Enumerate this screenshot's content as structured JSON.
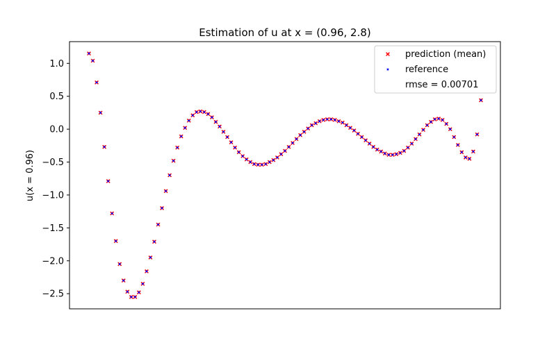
{
  "chart_data": {
    "type": "scatter",
    "title": "Estimation of u at x = (0.96, 2.8)",
    "xlabel": "",
    "ylabel": "u(x = 0.96)",
    "ylim": [
      -2.73,
      1.33
    ],
    "yticks": [
      1.0,
      0.5,
      0.0,
      -0.5,
      -1.0,
      -1.5,
      -2.0,
      -2.5
    ],
    "ytick_labels": [
      "1.0",
      "0.5",
      "0.0",
      "−0.5",
      "−1.0",
      "−1.5",
      "−2.0",
      "−2.5"
    ],
    "xticks_shown": false,
    "grid": false,
    "legend_position": "top-right",
    "colors": {
      "prediction": "#ff0000",
      "reference": "#0000ff"
    },
    "series": [
      {
        "name": "prediction (mean)",
        "marker": "x",
        "color": "#ff0000"
      },
      {
        "name": "reference",
        "marker": "star",
        "color": "#0000ff"
      }
    ],
    "annotation": "rmse = 0.00701",
    "y": [
      1.15,
      1.04,
      0.71,
      0.25,
      -0.27,
      -0.79,
      -1.28,
      -1.7,
      -2.05,
      -2.3,
      -2.47,
      -2.55,
      -2.55,
      -2.48,
      -2.35,
      -2.16,
      -1.95,
      -1.71,
      -1.45,
      -1.2,
      -0.94,
      -0.7,
      -0.48,
      -0.28,
      -0.11,
      0.02,
      0.13,
      0.21,
      0.26,
      0.27,
      0.26,
      0.23,
      0.18,
      0.11,
      0.04,
      -0.04,
      -0.12,
      -0.2,
      -0.28,
      -0.35,
      -0.41,
      -0.46,
      -0.5,
      -0.53,
      -0.54,
      -0.54,
      -0.53,
      -0.5,
      -0.47,
      -0.43,
      -0.38,
      -0.33,
      -0.27,
      -0.21,
      -0.15,
      -0.09,
      -0.04,
      0.01,
      0.06,
      0.09,
      0.12,
      0.14,
      0.15,
      0.15,
      0.14,
      0.12,
      0.1,
      0.06,
      0.02,
      -0.02,
      -0.07,
      -0.12,
      -0.17,
      -0.22,
      -0.27,
      -0.31,
      -0.34,
      -0.37,
      -0.39,
      -0.39,
      -0.38,
      -0.36,
      -0.33,
      -0.28,
      -0.22,
      -0.15,
      -0.08,
      -0.01,
      0.06,
      0.11,
      0.15,
      0.16,
      0.14,
      0.08,
      0.0,
      -0.12,
      -0.24,
      -0.35,
      -0.43,
      -0.45,
      -0.34,
      -0.08,
      0.44
    ]
  }
}
